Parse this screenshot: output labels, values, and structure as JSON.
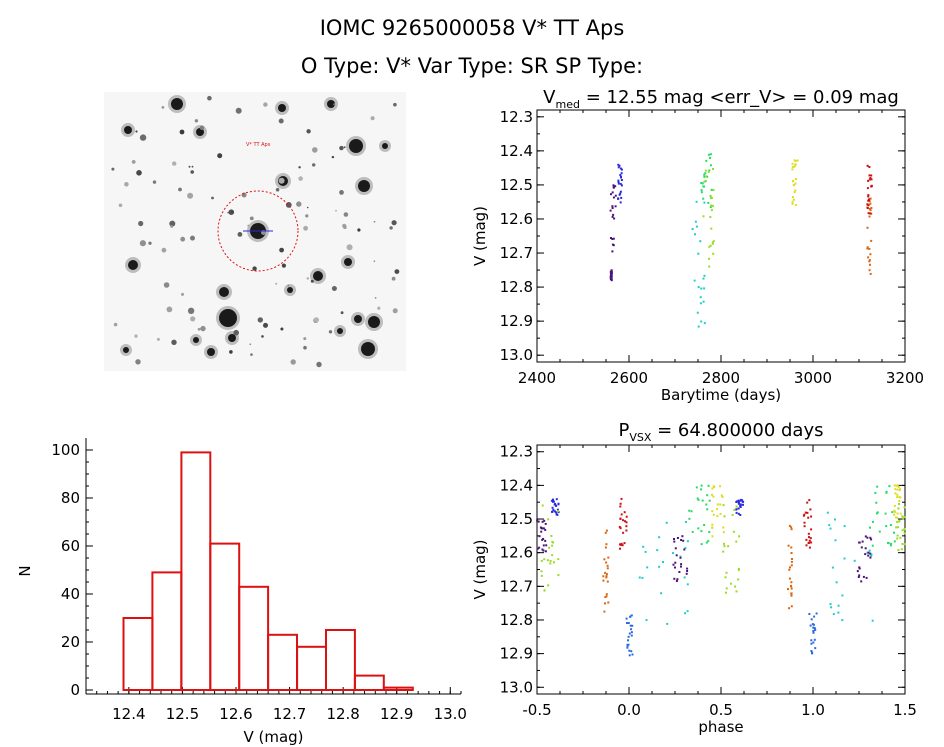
{
  "header": {
    "title": "IOMC 9265000058    V* TT Aps",
    "subtitle": "O Type: V*   Var Type: SR   SP Type:"
  },
  "finder_chart": {
    "target_label": "V* TT Aps",
    "corner_labels": [
      "",
      "",
      "",
      ""
    ]
  },
  "colors": {
    "histogram": "#dd1111",
    "circle": "#dd1111",
    "axes": "#000000"
  },
  "chart_data": [
    {
      "type": "scatter",
      "id": "lightcurve",
      "title_main": "V",
      "title_sub": "med",
      "title_rest": " = 12.55 mag <err_V> = 0.09 mag",
      "xlabel": "Barytime (days)",
      "ylabel": "V (mag)",
      "xlim": [
        2400,
        3200
      ],
      "ylim": [
        13.02,
        12.28
      ],
      "y_inverted": true,
      "xticks": [
        "2400",
        "2600",
        "2800",
        "3000",
        "3200"
      ],
      "yticks": [
        "12.3",
        "12.4",
        "12.5",
        "12.6",
        "12.7",
        "12.8",
        "12.9",
        "13.0"
      ],
      "groups": [
        {
          "color": "#2a2adf",
          "x_range": [
            2575,
            2585
          ],
          "y_range": [
            12.44,
            12.56
          ]
        },
        {
          "color": "#4b147a",
          "x_range": [
            2560,
            2572
          ],
          "y_range": [
            12.5,
            12.7
          ]
        },
        {
          "color": "#4b147a",
          "x_range": [
            2560,
            2563
          ],
          "y_range": [
            12.75,
            12.78
          ]
        },
        {
          "color": "#22cccc",
          "x_range": [
            2738,
            2765
          ],
          "y_range": [
            12.5,
            12.92
          ]
        },
        {
          "color": "#22dd66",
          "x_range": [
            2755,
            2780
          ],
          "y_range": [
            12.4,
            12.58
          ]
        },
        {
          "color": "#99dd22",
          "x_range": [
            2762,
            2785
          ],
          "y_range": [
            12.45,
            12.75
          ]
        },
        {
          "color": "#dddd22",
          "x_range": [
            2955,
            2968
          ],
          "y_range": [
            12.4,
            12.57
          ]
        },
        {
          "color": "#dd6611",
          "x_range": [
            3118,
            3128
          ],
          "y_range": [
            12.54,
            12.79
          ]
        },
        {
          "color": "#cc1111",
          "x_range": [
            3118,
            3128
          ],
          "y_range": [
            12.44,
            12.6
          ]
        }
      ]
    },
    {
      "type": "bar",
      "id": "histogram",
      "xlabel": "V (mag)",
      "ylabel": "N",
      "xlim": [
        12.32,
        13.02
      ],
      "ylim": [
        0,
        105
      ],
      "xticks": [
        "12.4",
        "12.5",
        "12.6",
        "12.7",
        "12.8",
        "12.9",
        "13.0"
      ],
      "yticks": [
        "0",
        "20",
        "40",
        "60",
        "80",
        "100"
      ],
      "bin_width": 0.054,
      "bin_starts": [
        12.39,
        12.444,
        12.498,
        12.552,
        12.606,
        12.66,
        12.714,
        12.768,
        12.822,
        12.876
      ],
      "values": [
        30,
        49,
        99,
        61,
        43,
        23,
        18,
        25,
        6,
        1
      ]
    },
    {
      "type": "scatter",
      "id": "phased",
      "title_main": "P",
      "title_sub": "VSX",
      "title_rest": " = 64.800000 days",
      "xlabel": "phase",
      "ylabel": "V (mag)",
      "xlim": [
        -0.5,
        1.5
      ],
      "ylim": [
        13.02,
        12.28
      ],
      "y_inverted": true,
      "xticks": [
        "-0.5",
        "0.0",
        "0.5",
        "1.0",
        "1.5"
      ],
      "yticks": [
        "12.3",
        "12.4",
        "12.5",
        "12.6",
        "12.7",
        "12.8",
        "12.9",
        "13.0"
      ],
      "groups": [
        {
          "color": "#2a2adf",
          "x_range": [
            -0.42,
            -0.38
          ],
          "y_range": [
            12.44,
            12.49
          ]
        },
        {
          "color": "#4b147a",
          "x_range": [
            -0.5,
            -0.45
          ],
          "y_range": [
            12.5,
            12.6
          ]
        },
        {
          "color": "#99dd22",
          "x_range": [
            -0.48,
            -0.38
          ],
          "y_range": [
            12.45,
            12.72
          ]
        },
        {
          "color": "#dd6611",
          "x_range": [
            -0.14,
            -0.11
          ],
          "y_range": [
            12.52,
            12.79
          ]
        },
        {
          "color": "#cc1111",
          "x_range": [
            -0.05,
            -0.01
          ],
          "y_range": [
            12.44,
            12.6
          ]
        },
        {
          "color": "#2a6ae0",
          "x_range": [
            -0.02,
            0.02
          ],
          "y_range": [
            12.78,
            12.91
          ]
        },
        {
          "color": "#22cccc",
          "x_range": [
            0.05,
            0.33
          ],
          "y_range": [
            12.48,
            12.85
          ]
        },
        {
          "color": "#4b147a",
          "x_range": [
            0.24,
            0.32
          ],
          "y_range": [
            12.55,
            12.69
          ]
        },
        {
          "color": "#22dd66",
          "x_range": [
            0.3,
            0.45
          ],
          "y_range": [
            12.4,
            12.58
          ]
        },
        {
          "color": "#dddd22",
          "x_range": [
            0.45,
            0.52
          ],
          "y_range": [
            12.4,
            12.56
          ]
        },
        {
          "color": "#99dd22",
          "x_range": [
            0.5,
            0.6
          ],
          "y_range": [
            12.45,
            12.72
          ]
        },
        {
          "color": "#2a2adf",
          "x_range": [
            0.58,
            0.62
          ],
          "y_range": [
            12.44,
            12.49
          ]
        },
        {
          "color": "#dd6611",
          "x_range": [
            0.86,
            0.89
          ],
          "y_range": [
            12.52,
            12.79
          ]
        },
        {
          "color": "#cc1111",
          "x_range": [
            0.95,
            0.99
          ],
          "y_range": [
            12.44,
            12.6
          ]
        },
        {
          "color": "#2a6ae0",
          "x_range": [
            0.98,
            1.02
          ],
          "y_range": [
            12.78,
            12.91
          ]
        },
        {
          "color": "#22cccc",
          "x_range": [
            1.05,
            1.33
          ],
          "y_range": [
            12.48,
            12.85
          ]
        },
        {
          "color": "#4b147a",
          "x_range": [
            1.24,
            1.32
          ],
          "y_range": [
            12.55,
            12.69
          ]
        },
        {
          "color": "#22dd66",
          "x_range": [
            1.3,
            1.45
          ],
          "y_range": [
            12.4,
            12.58
          ]
        },
        {
          "color": "#dddd22",
          "x_range": [
            1.44,
            1.48
          ],
          "y_range": [
            12.4,
            12.5
          ]
        },
        {
          "color": "#99dd22",
          "x_range": [
            1.45,
            1.5
          ],
          "y_range": [
            12.45,
            12.6
          ]
        }
      ]
    }
  ]
}
